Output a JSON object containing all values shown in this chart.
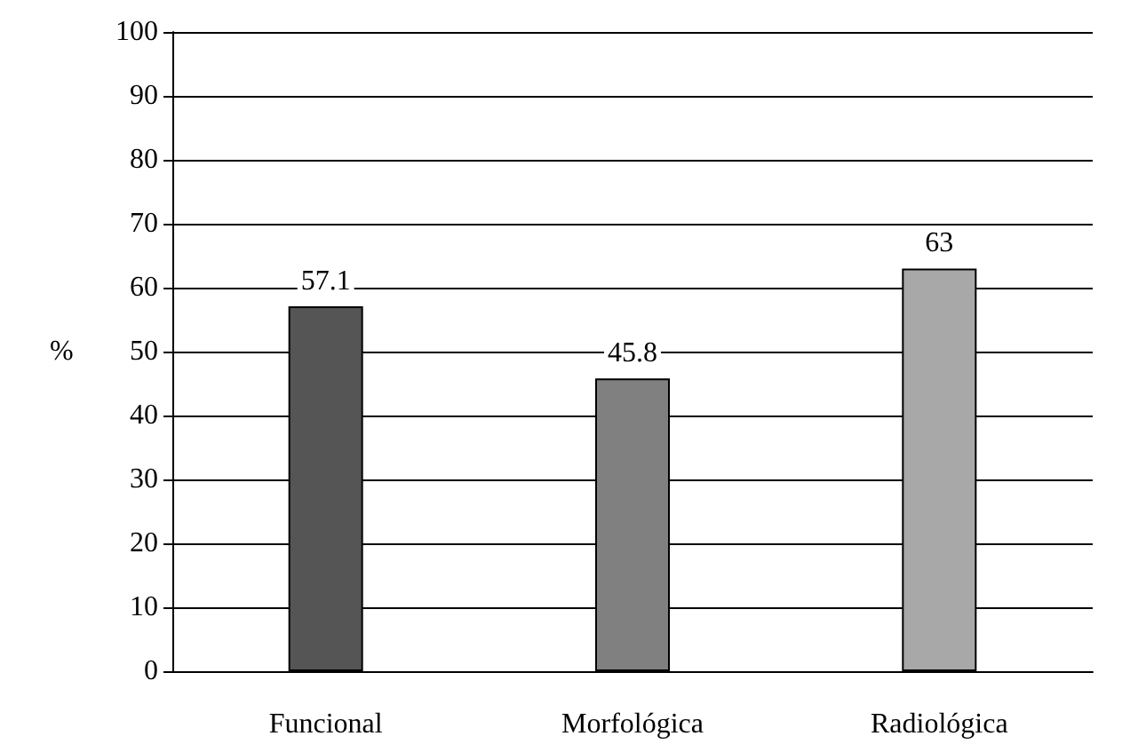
{
  "chart_data": {
    "type": "bar",
    "ylabel": "%",
    "categories": [
      "Funcional",
      "Morfológica",
      "Radiológica"
    ],
    "values": [
      57.1,
      45.8,
      63
    ],
    "colors": [
      "#555555",
      "#808080",
      "#a8a8a8"
    ],
    "ylim": [
      0,
      100
    ],
    "yticks": [
      0,
      10,
      20,
      30,
      40,
      50,
      60,
      70,
      80,
      90,
      100
    ],
    "grid": "y",
    "data_labels": true
  }
}
